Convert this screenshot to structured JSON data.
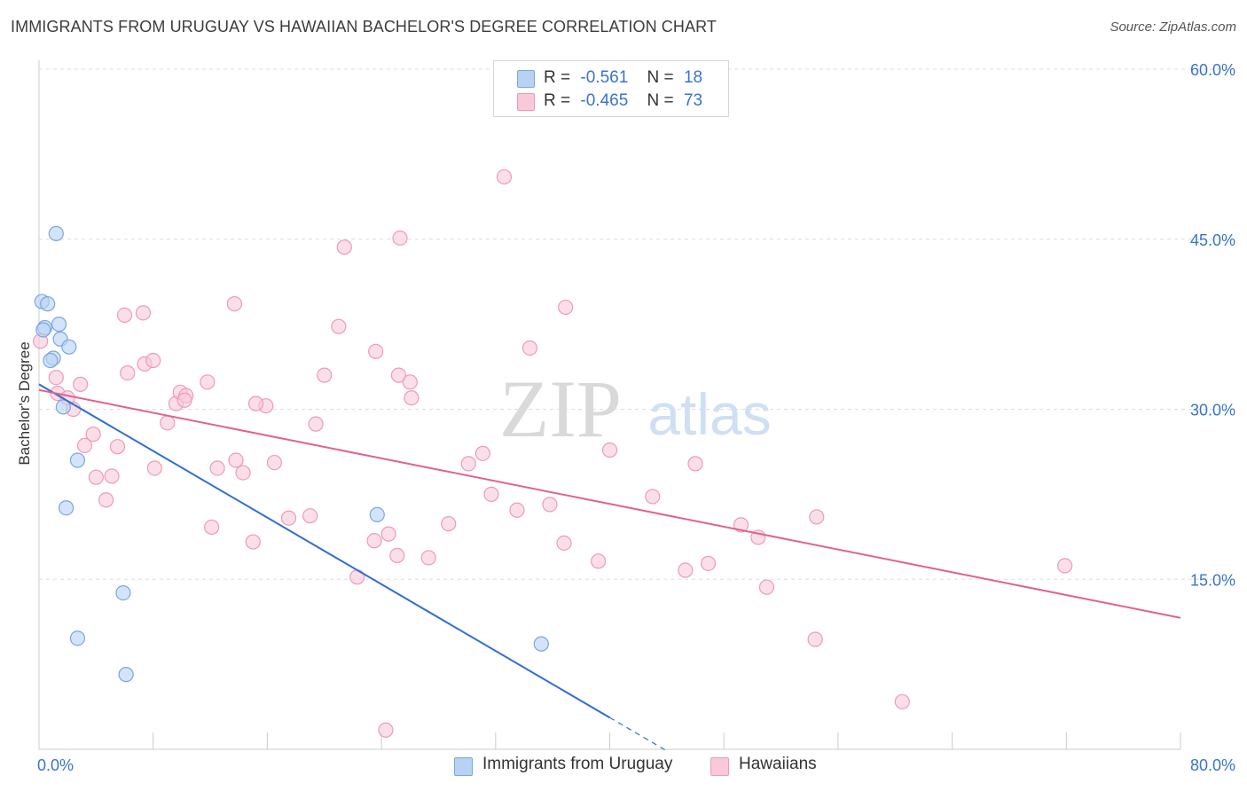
{
  "title": "IMMIGRANTS FROM URUGUAY VS HAWAIIAN BACHELOR'S DEGREE CORRELATION CHART",
  "source": "Source: ZipAtlas.com",
  "watermark": {
    "zip": "ZIP",
    "atlas": "atlas"
  },
  "legend_stats": [
    {
      "r_label": "R =",
      "r_value": "-0.561",
      "n_label": "N =",
      "n_value": "18"
    },
    {
      "r_label": "R =",
      "r_value": "-0.465",
      "n_label": "N =",
      "n_value": "73"
    }
  ],
  "colors": {
    "series1_fill": "#b8d2f4",
    "series1_stroke": "#7aa6e0",
    "series1_line": "#2f6fd0",
    "series2_fill": "#f9c9d8",
    "series2_stroke": "#ee9ab6",
    "series2_line": "#e0628e",
    "axis_label": "#3a74c9",
    "grid": "#dddddd"
  },
  "chart_data": {
    "type": "scatter",
    "title": "IMMIGRANTS FROM URUGUAY VS HAWAIIAN BACHELOR'S DEGREE CORRELATION CHART",
    "xlabel": "",
    "ylabel": "Bachelor's Degree",
    "xlim": [
      0,
      80
    ],
    "ylim": [
      0,
      60
    ],
    "x_tick_labels": [
      "0.0%",
      "80.0%"
    ],
    "y_ticks": [
      15,
      30,
      45,
      60
    ],
    "y_tick_labels": [
      "15.0%",
      "30.0%",
      "45.0%",
      "60.0%"
    ],
    "grid": true,
    "legend_position": "bottom-center",
    "series": [
      {
        "name": "Immigrants from Uruguay",
        "points": [
          [
            0.2,
            39.5
          ],
          [
            0.6,
            39.3
          ],
          [
            0.4,
            37.2
          ],
          [
            1.4,
            37.5
          ],
          [
            1.5,
            36.2
          ],
          [
            2.1,
            35.5
          ],
          [
            1.0,
            34.5
          ],
          [
            0.8,
            34.3
          ],
          [
            1.7,
            30.2
          ],
          [
            2.7,
            25.5
          ],
          [
            1.9,
            21.3
          ],
          [
            1.2,
            45.5
          ],
          [
            5.9,
            13.8
          ],
          [
            2.7,
            9.8
          ],
          [
            6.1,
            6.6
          ],
          [
            23.7,
            20.7
          ],
          [
            35.2,
            9.3
          ],
          [
            0.3,
            37.0
          ]
        ],
        "trend": {
          "x0": 0.0,
          "y0": 32.2,
          "x1": 40.0,
          "y1": 2.8,
          "dash_to_x": 44.0
        }
      },
      {
        "name": "Hawaiians",
        "points": [
          [
            0.1,
            36.0
          ],
          [
            1.2,
            32.8
          ],
          [
            2.9,
            32.2
          ],
          [
            1.3,
            31.4
          ],
          [
            2.4,
            30.0
          ],
          [
            3.8,
            27.8
          ],
          [
            4.0,
            24.0
          ],
          [
            3.2,
            26.8
          ],
          [
            4.7,
            22.0
          ],
          [
            6.0,
            38.3
          ],
          [
            7.3,
            38.5
          ],
          [
            7.4,
            34.0
          ],
          [
            6.2,
            33.2
          ],
          [
            8.1,
            24.8
          ],
          [
            9.6,
            30.5
          ],
          [
            9.9,
            31.5
          ],
          [
            10.3,
            31.2
          ],
          [
            11.8,
            32.4
          ],
          [
            13.7,
            39.3
          ],
          [
            15.9,
            30.3
          ],
          [
            16.5,
            25.3
          ],
          [
            17.5,
            20.4
          ],
          [
            19.4,
            28.7
          ],
          [
            20.0,
            33.0
          ],
          [
            19.0,
            20.6
          ],
          [
            21.0,
            37.3
          ],
          [
            23.6,
            35.1
          ],
          [
            21.4,
            44.3
          ],
          [
            23.5,
            18.4
          ],
          [
            25.2,
            33.0
          ],
          [
            24.5,
            19.0
          ],
          [
            26.0,
            32.4
          ],
          [
            26.1,
            31.0
          ],
          [
            22.3,
            15.2
          ],
          [
            25.1,
            17.1
          ],
          [
            30.1,
            25.2
          ],
          [
            31.1,
            26.1
          ],
          [
            31.7,
            22.5
          ],
          [
            34.4,
            35.4
          ],
          [
            36.9,
            39.0
          ],
          [
            33.5,
            21.1
          ],
          [
            35.8,
            21.6
          ],
          [
            36.8,
            18.2
          ],
          [
            39.2,
            16.6
          ],
          [
            40.0,
            26.4
          ],
          [
            43.0,
            22.3
          ],
          [
            46.0,
            25.2
          ],
          [
            45.3,
            15.8
          ],
          [
            46.9,
            16.4
          ],
          [
            49.2,
            19.8
          ],
          [
            50.4,
            18.7
          ],
          [
            51.0,
            14.3
          ],
          [
            54.5,
            20.5
          ],
          [
            54.4,
            9.7
          ],
          [
            60.5,
            4.2
          ],
          [
            71.9,
            16.2
          ],
          [
            32.6,
            50.5
          ],
          [
            25.3,
            45.1
          ],
          [
            15.2,
            30.5
          ],
          [
            13.8,
            25.5
          ],
          [
            9.0,
            28.8
          ],
          [
            10.2,
            30.8
          ],
          [
            5.1,
            24.1
          ],
          [
            12.5,
            24.8
          ],
          [
            14.3,
            24.4
          ],
          [
            27.3,
            16.9
          ],
          [
            28.7,
            19.9
          ],
          [
            24.3,
            1.7
          ],
          [
            8.0,
            34.3
          ],
          [
            12.1,
            19.6
          ],
          [
            15.0,
            18.3
          ],
          [
            5.5,
            26.7
          ],
          [
            2.0,
            31.0
          ]
        ],
        "trend": {
          "x0": 0.0,
          "y0": 31.7,
          "x1": 80.0,
          "y1": 11.6
        }
      }
    ]
  }
}
